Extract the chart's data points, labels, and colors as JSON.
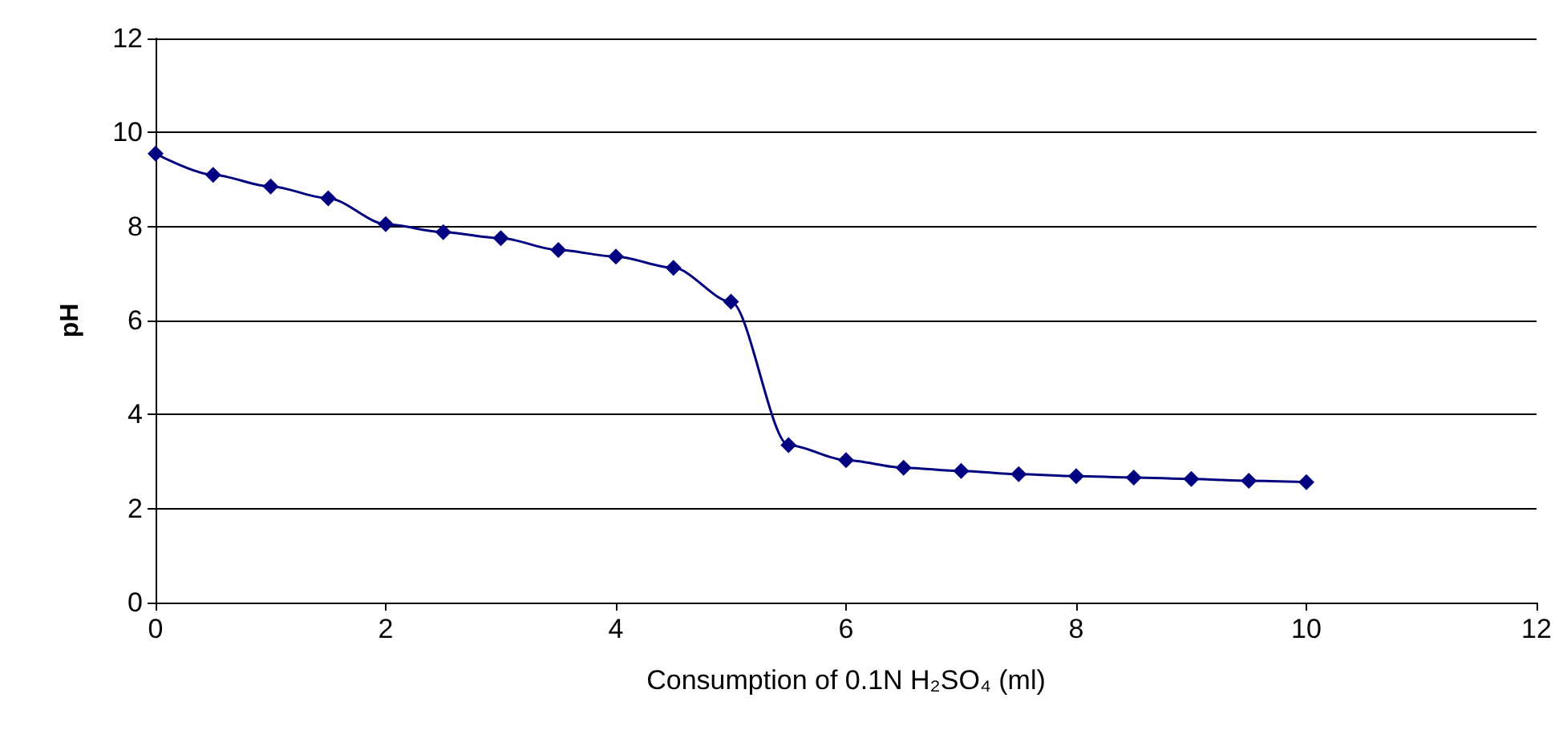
{
  "chart_data": {
    "type": "line",
    "xlabel": "Consumption of 0.1N H₂SO₄ (ml)",
    "ylabel": "pH",
    "x": [
      0,
      0.5,
      1,
      1.5,
      2,
      2.5,
      3,
      3.5,
      4,
      4.5,
      5,
      5.5,
      6,
      6.5,
      7,
      7.5,
      8,
      8.5,
      9,
      9.5,
      10
    ],
    "series": [
      {
        "color": "#000080",
        "values": [
          9.55,
          9.1,
          8.85,
          8.6,
          8.05,
          7.88,
          7.75,
          7.5,
          7.36,
          7.12,
          6.4,
          3.35,
          3.03,
          2.87,
          2.8,
          2.73,
          2.69,
          2.66,
          2.63,
          2.59,
          2.56
        ]
      }
    ],
    "xlim": [
      0,
      12
    ],
    "xticks": [
      0,
      2,
      4,
      6,
      8,
      10,
      12
    ],
    "ylim": [
      0,
      12
    ],
    "yticks": [
      0,
      2,
      4,
      6,
      8,
      10,
      12
    ],
    "grid": "y",
    "marker": "diamond",
    "line_style": "solid"
  }
}
